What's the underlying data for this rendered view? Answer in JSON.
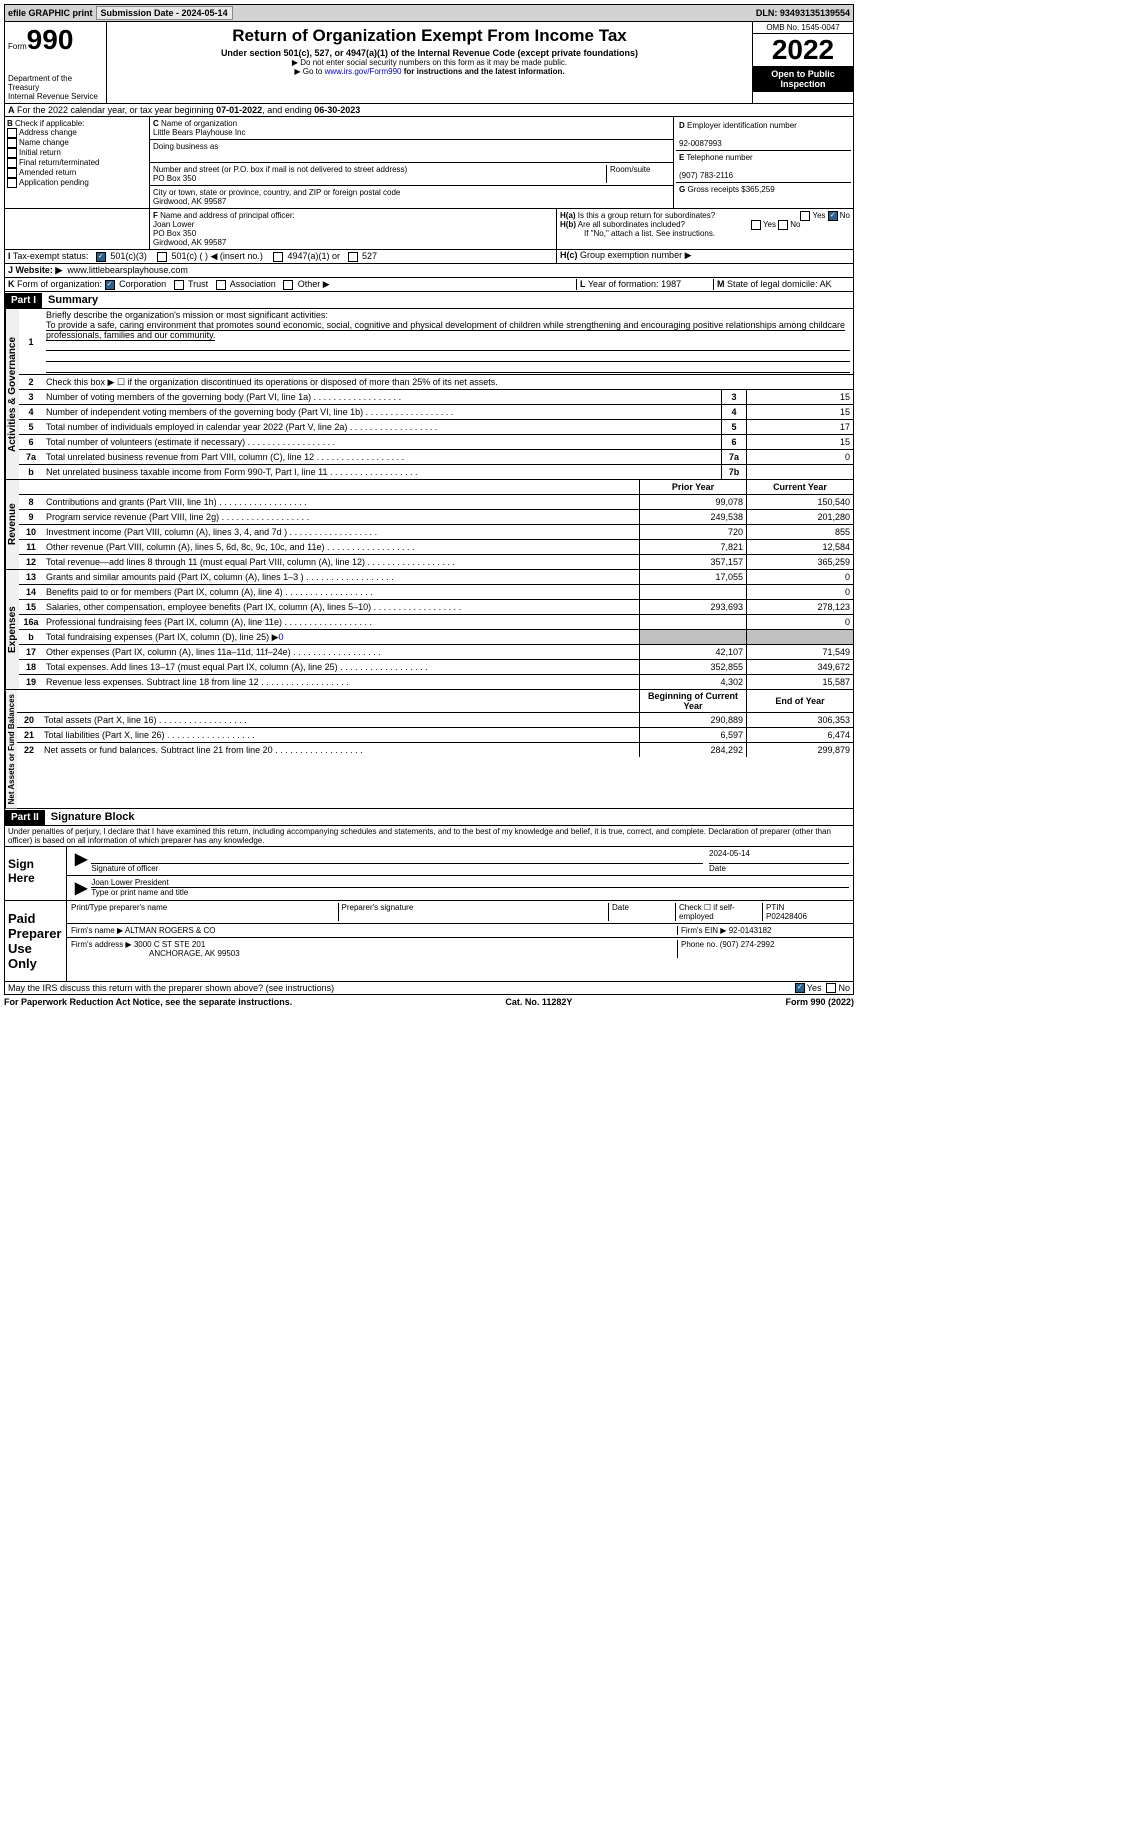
{
  "top": {
    "efile": "efile GRAPHIC print",
    "sub_label": "Submission Date - ",
    "sub_date": "2024-05-14",
    "dln_label": "DLN: ",
    "dln": "93493135139554"
  },
  "hdr": {
    "form": "Form",
    "num": "990",
    "dept": "Department of the Treasury",
    "irs": "Internal Revenue Service",
    "title": "Return of Organization Exempt From Income Tax",
    "sub": "Under section 501(c), 527, or 4947(a)(1) of the Internal Revenue Code (except private foundations)",
    "note1": "▶ Do not enter social security numbers on this form as it may be made public.",
    "note2": "▶ Go to ",
    "link": "www.irs.gov/Form990",
    "note3": " for instructions and the latest information.",
    "omb": "OMB No. 1545-0047",
    "year": "2022",
    "open": "Open to Public Inspection"
  },
  "A": {
    "txt": "For the 2022 calendar year, or tax year beginning ",
    "begin": "07-01-2022",
    "mid": ", and ending ",
    "end": "06-30-2023"
  },
  "B": {
    "label": "Check if applicable:",
    "items": [
      "Address change",
      "Name change",
      "Initial return",
      "Final return/terminated",
      "Amended return",
      "Application pending"
    ]
  },
  "C": {
    "name_label": "Name of organization",
    "name": "Little Bears Playhouse Inc",
    "dba_label": "Doing business as",
    "dba": "",
    "addr_label": "Number and street (or P.O. box if mail is not delivered to street address)",
    "room": "Room/suite",
    "addr": "PO Box 350",
    "city_label": "City or town, state or province, country, and ZIP or foreign postal code",
    "city": "Girdwood, AK  99587"
  },
  "D": {
    "label": "Employer identification number",
    "val": "92-0087993"
  },
  "E": {
    "label": "Telephone number",
    "val": "(907) 783-2116"
  },
  "G": {
    "label": "Gross receipts $",
    "val": "365,259"
  },
  "F": {
    "label": "Name and address of principal officer:",
    "name": "Joan Lower",
    "addr": "PO Box 350",
    "city": "Girdwood, AK  99587"
  },
  "H": {
    "a": "Is this a group return for subordinates?",
    "b": "Are all subordinates included?",
    "bnote": "If \"No,\" attach a list. See instructions.",
    "c": "Group exemption number ▶",
    "yes": "Yes",
    "no": "No"
  },
  "I": {
    "label": "Tax-exempt status:",
    "o1": "501(c)(3)",
    "o2": "501(c) (  ) ◀ (insert no.)",
    "o3": "4947(a)(1) or",
    "o4": "527"
  },
  "J": {
    "label": "Website: ▶",
    "val": "www.littlebearsplayhouse.com"
  },
  "K": {
    "label": "Form of organization:",
    "o1": "Corporation",
    "o2": "Trust",
    "o3": "Association",
    "o4": "Other ▶"
  },
  "L": {
    "label": "Year of formation: ",
    "val": "1987"
  },
  "M": {
    "label": "State of legal domicile: ",
    "val": "AK"
  },
  "p1": {
    "part": "Part I",
    "title": "Summary",
    "l1": "Briefly describe the organization's mission or most significant activities:",
    "mission": "To provide a safe, caring environment that promotes sound economic, social, cognitive and physical development of children while strengthening and encouraging positive relationships among childcare professionals, families and our community.",
    "l2": "Check this box ▶ ☐ if the organization discontinued its operations or disposed of more than 25% of its net assets.",
    "lines_a": [
      {
        "n": "3",
        "t": "Number of voting members of the governing body (Part VI, line 1a)",
        "b": "3",
        "v": "15"
      },
      {
        "n": "4",
        "t": "Number of independent voting members of the governing body (Part VI, line 1b)",
        "b": "4",
        "v": "15"
      },
      {
        "n": "5",
        "t": "Total number of individuals employed in calendar year 2022 (Part V, line 2a)",
        "b": "5",
        "v": "17"
      },
      {
        "n": "6",
        "t": "Total number of volunteers (estimate if necessary)",
        "b": "6",
        "v": "15"
      },
      {
        "n": "7a",
        "t": "Total unrelated business revenue from Part VIII, column (C), line 12",
        "b": "7a",
        "v": "0"
      },
      {
        "n": "b",
        "t": "Net unrelated business taxable income from Form 990-T, Part I, line 11",
        "b": "7b",
        "v": ""
      }
    ],
    "py": "Prior Year",
    "cy": "Current Year",
    "rev": [
      {
        "n": "8",
        "t": "Contributions and grants (Part VIII, line 1h)",
        "p": "99,078",
        "c": "150,540"
      },
      {
        "n": "9",
        "t": "Program service revenue (Part VIII, line 2g)",
        "p": "249,538",
        "c": "201,280"
      },
      {
        "n": "10",
        "t": "Investment income (Part VIII, column (A), lines 3, 4, and 7d )",
        "p": "720",
        "c": "855"
      },
      {
        "n": "11",
        "t": "Other revenue (Part VIII, column (A), lines 5, 6d, 8c, 9c, 10c, and 11e)",
        "p": "7,821",
        "c": "12,584"
      },
      {
        "n": "12",
        "t": "Total revenue—add lines 8 through 11 (must equal Part VIII, column (A), line 12)",
        "p": "357,157",
        "c": "365,259"
      }
    ],
    "exp": [
      {
        "n": "13",
        "t": "Grants and similar amounts paid (Part IX, column (A), lines 1–3 )",
        "p": "17,055",
        "c": "0"
      },
      {
        "n": "14",
        "t": "Benefits paid to or for members (Part IX, column (A), line 4)",
        "p": "",
        "c": "0"
      },
      {
        "n": "15",
        "t": "Salaries, other compensation, employee benefits (Part IX, column (A), lines 5–10)",
        "p": "293,693",
        "c": "278,123"
      },
      {
        "n": "16a",
        "t": "Professional fundraising fees (Part IX, column (A), line 11e)",
        "p": "",
        "c": "0"
      },
      {
        "n": "b",
        "t": "Total fundraising expenses (Part IX, column (D), line 25) ▶",
        "p": "gray",
        "c": "gray",
        "fund": "0"
      },
      {
        "n": "17",
        "t": "Other expenses (Part IX, column (A), lines 11a–11d, 11f–24e)",
        "p": "42,107",
        "c": "71,549"
      },
      {
        "n": "18",
        "t": "Total expenses. Add lines 13–17 (must equal Part IX, column (A), line 25)",
        "p": "352,855",
        "c": "349,672"
      },
      {
        "n": "19",
        "t": "Revenue less expenses. Subtract line 18 from line 12",
        "p": "4,302",
        "c": "15,587"
      }
    ],
    "bcy": "Beginning of Current Year",
    "eoy": "End of Year",
    "net": [
      {
        "n": "20",
        "t": "Total assets (Part X, line 16)",
        "p": "290,889",
        "c": "306,353"
      },
      {
        "n": "21",
        "t": "Total liabilities (Part X, line 26)",
        "p": "6,597",
        "c": "6,474"
      },
      {
        "n": "22",
        "t": "Net assets or fund balances. Subtract line 21 from line 20",
        "p": "284,292",
        "c": "299,879"
      }
    ],
    "vtabs": {
      "ag": "Activities & Governance",
      "rev": "Revenue",
      "exp": "Expenses",
      "net": "Net Assets or Fund Balances"
    }
  },
  "p2": {
    "part": "Part II",
    "title": "Signature Block",
    "decl": "Under penalties of perjury, I declare that I have examined this return, including accompanying schedules and statements, and to the best of my knowledge and belief, it is true, correct, and complete. Declaration of preparer (other than officer) is based on all information of which preparer has any knowledge.",
    "sign": "Sign Here",
    "sig_off": "Signature of officer",
    "date": "Date",
    "sig_date": "2024-05-14",
    "name_title": "Joan Lower  President",
    "type_name": "Type or print name and title",
    "paid": "Paid Preparer Use Only",
    "pname": "Print/Type preparer's name",
    "psig": "Preparer's signature",
    "pdate": "Date",
    "self": "Check ☐ if self-employed",
    "ptin_l": "PTIN",
    "ptin": "P02428406",
    "firm_l": "Firm's name    ▶",
    "firm": "ALTMAN ROGERS & CO",
    "ein_l": "Firm's EIN ▶",
    "ein": "92-0143182",
    "faddr_l": "Firm's address ▶",
    "faddr1": "3000 C ST STE 201",
    "faddr2": "ANCHORAGE, AK  99503",
    "phone_l": "Phone no.",
    "phone": "(907) 274-2992",
    "may": "May the IRS discuss this return with the preparer shown above? (see instructions)"
  },
  "foot": {
    "l": "For Paperwork Reduction Act Notice, see the separate instructions.",
    "c": "Cat. No. 11282Y",
    "r": "Form 990 (2022)"
  }
}
